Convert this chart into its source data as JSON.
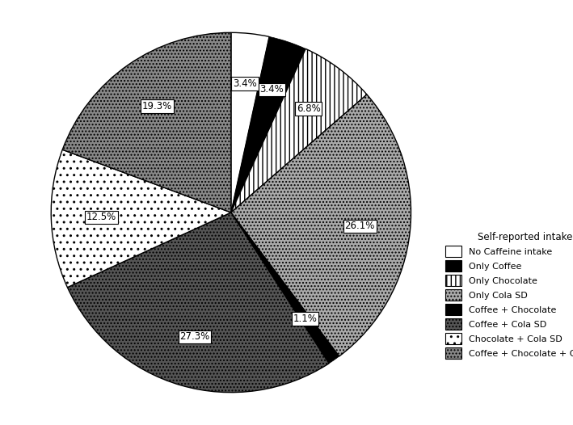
{
  "categories": [
    "No Caffeine intake",
    "Only Coffee",
    "Only Chocolate",
    "Only Cola SD",
    "Coffee + Chocolate",
    "Coffee + Cola SD",
    "Chocolate + Cola SD",
    "Coffee + Chocolate + Cola SD"
  ],
  "values": [
    3.4,
    3.4,
    6.8,
    26.1,
    1.1,
    27.3,
    12.5,
    19.3
  ],
  "pct_labels": [
    "3.4%",
    "3.4%",
    "6.8%",
    "26.1%",
    "1.1%",
    "27.3%",
    "12.5%",
    "19.3%"
  ],
  "legend_title": "Self-reported intake",
  "startangle": 90,
  "figsize": [
    7.09,
    5.26
  ],
  "dpi": 100,
  "slice_styles": [
    {
      "facecolor": "white",
      "hatch": "",
      "edgecolor": "black",
      "lw": 1.0
    },
    {
      "facecolor": "black",
      "hatch": "ooo",
      "edgecolor": "white",
      "lw": 0.5
    },
    {
      "facecolor": "white",
      "hatch": "|||",
      "edgecolor": "black",
      "lw": 1.0
    },
    {
      "facecolor": "#aaaaaa",
      "hatch": "....",
      "edgecolor": "black",
      "lw": 1.0
    },
    {
      "facecolor": "black",
      "hatch": "xx",
      "edgecolor": "gray",
      "lw": 0.5
    },
    {
      "facecolor": "#555555",
      "hatch": "....",
      "edgecolor": "black",
      "lw": 1.0
    },
    {
      "facecolor": "white",
      "hatch": "..",
      "edgecolor": "black",
      "lw": 1.0
    },
    {
      "facecolor": "#888888",
      "hatch": "....",
      "edgecolor": "black",
      "lw": 1.0
    }
  ],
  "legend_styles": [
    {
      "facecolor": "white",
      "hatch": "",
      "label": "No Caffeine intake"
    },
    {
      "facecolor": "black",
      "hatch": "ooo",
      "label": "Only Coffee"
    },
    {
      "facecolor": "white",
      "hatch": "|||",
      "label": "Only Chocolate"
    },
    {
      "facecolor": "#aaaaaa",
      "hatch": "....",
      "label": "Only Cola SD"
    },
    {
      "facecolor": "black",
      "hatch": "xx",
      "label": "Coffee + Chocolate"
    },
    {
      "facecolor": "#555555",
      "hatch": "....",
      "label": "Coffee + Cola SD"
    },
    {
      "facecolor": "white",
      "hatch": "..",
      "label": "Chocolate + Cola SD"
    },
    {
      "facecolor": "#888888",
      "hatch": "....",
      "label": "Coffee + Chocolate + Cola SD"
    }
  ]
}
